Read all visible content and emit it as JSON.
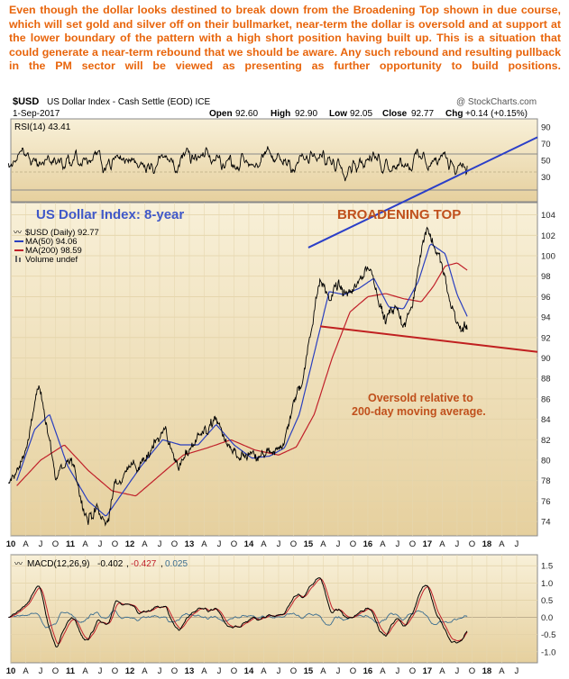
{
  "commentary": "Even though the dollar looks destined to break down from the Broadening Top shown in due course, which will set gold and silver off on their bullmarket, near-term the dollar is oversold and at support at the lower boundary of the pattern with a high short position having built up. This is a situation that could generate a near-term rebound that we should be aware. Any such rebound and resulting pullback in the PM sector will be viewed as presenting as further opportunity to build positions.",
  "header": {
    "symbol": "$USD",
    "name": "US Dollar Index - Cash Settle (EOD) ICE",
    "watermark": "@ StockCharts.com",
    "date": "1-Sep-2017",
    "open_label": "Open",
    "open": "92.60",
    "high_label": "High",
    "high": "92.90",
    "low_label": "Low",
    "low": "92.05",
    "close_label": "Close",
    "close": "92.77",
    "chg_label": "Chg",
    "chg": "+0.14 (+0.15%)"
  },
  "colors": {
    "panel_bg": "#f6ecd0",
    "price": "#000000",
    "ma50": "#2a3fbf",
    "ma200": "#c0202a",
    "annotation": "#c0501c",
    "title_annotation": "#4058c8",
    "trendline_upper": "#2b3fc8",
    "trendline_lower": "#c02020",
    "macd_hist": "#3c6e90"
  },
  "annotations": {
    "title": "US Dollar Index: 8-year",
    "pattern": "BROADENING TOP",
    "oversold_line1": "Oversold relative to",
    "oversold_line2": "200-day moving average."
  },
  "chart_data": [
    {
      "panel": "rsi",
      "type": "line",
      "label": "RSI(14) 43.41",
      "last": 43.41,
      "ylim": [
        0,
        100
      ],
      "yticks": [
        30,
        50,
        70,
        90
      ],
      "reference_lines": [
        30,
        70
      ]
    },
    {
      "panel": "price",
      "type": "line",
      "legend": [
        {
          "name": "$USD (Daily) 92.77",
          "value": 92.77
        },
        {
          "name": "MA(50) 94.06",
          "value": 94.06
        },
        {
          "name": "MA(200) 98.59",
          "value": 98.59
        },
        {
          "name": "Volume undef"
        }
      ],
      "ylim": [
        72.6,
        105.2
      ],
      "yticks": [
        74,
        76,
        78,
        80,
        82,
        84,
        86,
        88,
        90,
        92,
        94,
        96,
        98,
        100,
        102,
        104
      ],
      "x_range": [
        2010.0,
        2018.85
      ],
      "x_tick_labels": [
        "10",
        "A",
        "J",
        "O",
        "11",
        "A",
        "J",
        "O",
        "12",
        "A",
        "J",
        "O",
        "13",
        "A",
        "J",
        "O",
        "14",
        "A",
        "J",
        "O",
        "15",
        "A",
        "J",
        "O",
        "16",
        "A",
        "J",
        "O",
        "17",
        "A",
        "J",
        "O",
        "18",
        "A",
        "J"
      ],
      "x_tick_positions": [
        2010.0,
        2010.25,
        2010.5,
        2010.75,
        2011.0,
        2011.25,
        2011.5,
        2011.75,
        2012.0,
        2012.25,
        2012.5,
        2012.75,
        2013.0,
        2013.25,
        2013.5,
        2013.75,
        2014.0,
        2014.25,
        2014.5,
        2014.75,
        2015.0,
        2015.25,
        2015.5,
        2015.75,
        2016.0,
        2016.25,
        2016.5,
        2016.75,
        2017.0,
        2017.25,
        2017.5,
        2017.75,
        2018.0,
        2018.25,
        2018.5
      ],
      "series": [
        {
          "name": "$USD",
          "x": [
            2009.96,
            2010.15,
            2010.3,
            2010.45,
            2010.6,
            2010.75,
            2010.85,
            2011.0,
            2011.15,
            2011.3,
            2011.45,
            2011.6,
            2011.75,
            2011.9,
            2012.0,
            2012.15,
            2012.3,
            2012.45,
            2012.6,
            2012.75,
            2012.9,
            2013.0,
            2013.15,
            2013.3,
            2013.45,
            2013.6,
            2013.75,
            2013.9,
            2014.0,
            2014.15,
            2014.3,
            2014.45,
            2014.6,
            2014.75,
            2014.9,
            2015.0,
            2015.1,
            2015.2,
            2015.35,
            2015.5,
            2015.65,
            2015.8,
            2015.95,
            2016.1,
            2016.3,
            2016.45,
            2016.6,
            2016.75,
            2016.9,
            2017.0,
            2017.1,
            2017.25,
            2017.4,
            2017.55,
            2017.67
          ],
          "y": [
            77.5,
            79.5,
            82,
            87,
            84,
            78,
            79.5,
            80,
            77,
            74,
            75,
            73.5,
            77.5,
            78.5,
            80,
            79.2,
            80,
            82.5,
            83,
            80,
            79.5,
            81,
            82.7,
            83,
            84,
            82,
            80.5,
            80,
            80.5,
            80,
            80.5,
            80.5,
            82,
            85.5,
            88,
            91,
            95,
            98,
            96,
            97,
            96,
            97,
            99,
            98,
            93.5,
            95,
            93,
            95,
            101,
            103,
            101,
            99,
            95,
            93,
            92.77
          ]
        },
        {
          "name": "MA(50)",
          "x": [
            2010.1,
            2010.4,
            2010.65,
            2010.95,
            2011.3,
            2011.6,
            2011.9,
            2012.2,
            2012.55,
            2012.85,
            2013.15,
            2013.45,
            2013.75,
            2014.05,
            2014.35,
            2014.6,
            2014.85,
            2015.1,
            2015.35,
            2015.6,
            2015.85,
            2016.1,
            2016.35,
            2016.6,
            2016.85,
            2017.05,
            2017.3,
            2017.5,
            2017.67
          ],
          "y": [
            78,
            83,
            84.5,
            79.5,
            76,
            74.5,
            77,
            79.5,
            82,
            81.5,
            81.5,
            83.5,
            81.5,
            80.2,
            80.4,
            81.2,
            84.5,
            90.5,
            96.5,
            96.2,
            96.8,
            97.8,
            95,
            94.8,
            97.5,
            101.2,
            100.2,
            96.2,
            94.06
          ]
        },
        {
          "name": "MA(200)",
          "x": [
            2010.1,
            2010.5,
            2010.9,
            2011.3,
            2011.7,
            2012.1,
            2012.5,
            2012.9,
            2013.3,
            2013.7,
            2014.1,
            2014.5,
            2014.8,
            2015.1,
            2015.4,
            2015.7,
            2016.0,
            2016.3,
            2016.6,
            2016.9,
            2017.1,
            2017.3,
            2017.5,
            2017.67
          ],
          "y": [
            77.5,
            80,
            81.5,
            79,
            77,
            76.5,
            78.5,
            80.5,
            81.2,
            82,
            81,
            80.5,
            81.3,
            84.5,
            90,
            94.5,
            96,
            96.3,
            95.8,
            95.5,
            97,
            99,
            99.3,
            98.59
          ]
        }
      ],
      "trendlines": [
        {
          "name": "upper",
          "x": [
            2015.0,
            2018.85
          ],
          "y": [
            100.8,
            111.6
          ]
        },
        {
          "name": "lower",
          "x": [
            2015.2,
            2018.85
          ],
          "y": [
            93.1,
            90.6
          ]
        }
      ]
    },
    {
      "panel": "macd",
      "type": "line",
      "label": "MACD(12,26,9)",
      "values": [
        "-0.402",
        "-0.427",
        "0.025"
      ],
      "macd": -0.402,
      "signal": -0.427,
      "histogram": 0.025,
      "ylim": [
        -1.32,
        1.82
      ],
      "yticks": [
        -1.0,
        -0.5,
        0.0,
        0.5,
        1.0,
        1.5
      ]
    }
  ]
}
